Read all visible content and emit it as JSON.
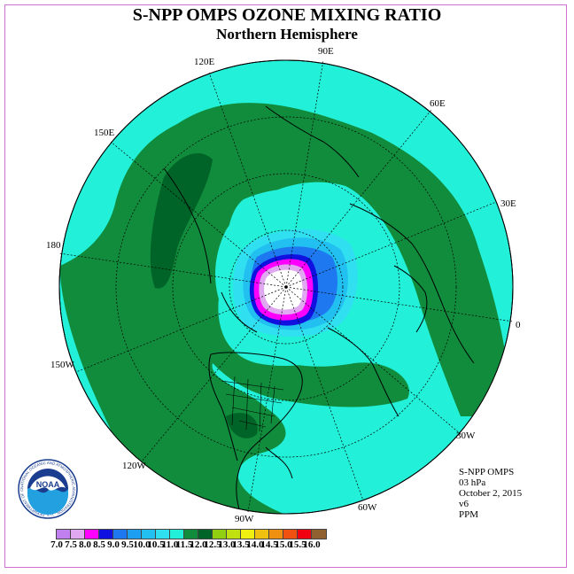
{
  "title": "S-NPP OMPS OZONE MIXING RATIO",
  "subtitle": "Northern Hemisphere",
  "longitude_labels": [
    "90E",
    "60E",
    "30E",
    "0",
    "30W",
    "60W",
    "90W",
    "120W",
    "150W",
    "180",
    "150E",
    "120E"
  ],
  "info": {
    "instrument": "S-NPP OMPS",
    "level": "03 hPa",
    "date": "October 2, 2015",
    "version": "v6",
    "units": "PPM"
  },
  "colorbar": {
    "ticks": [
      "7.0",
      "7.5",
      "8.0",
      "8.5",
      "9.0",
      "9.5",
      "10.0",
      "10.5",
      "11.0",
      "11.5",
      "12.0",
      "12.5",
      "13.0",
      "13.5",
      "14.0",
      "14.5",
      "15.0",
      "15.5",
      "16.0"
    ],
    "colors": [
      "#c080f0",
      "#e0a8f0",
      "#ff00ff",
      "#1010e0",
      "#1e78f0",
      "#1e9ef0",
      "#22c0f0",
      "#30e0f0",
      "#22f0d8",
      "#108c3c",
      "#006428",
      "#90d010",
      "#c0e010",
      "#f0f010",
      "#f0c010",
      "#f09010",
      "#f05010",
      "#f00010",
      "#906030"
    ]
  },
  "map_colors": {
    "ocean_cyan": "#22f0d8",
    "dark_green": "#108c3c",
    "darker_green": "#006428"
  },
  "logo_text": "NOAA",
  "logo_ring_text": "NATIONAL OCEANIC AND ATMOSPHERIC ADMINISTRATION · U.S. DEPARTMENT OF COMMERCE"
}
